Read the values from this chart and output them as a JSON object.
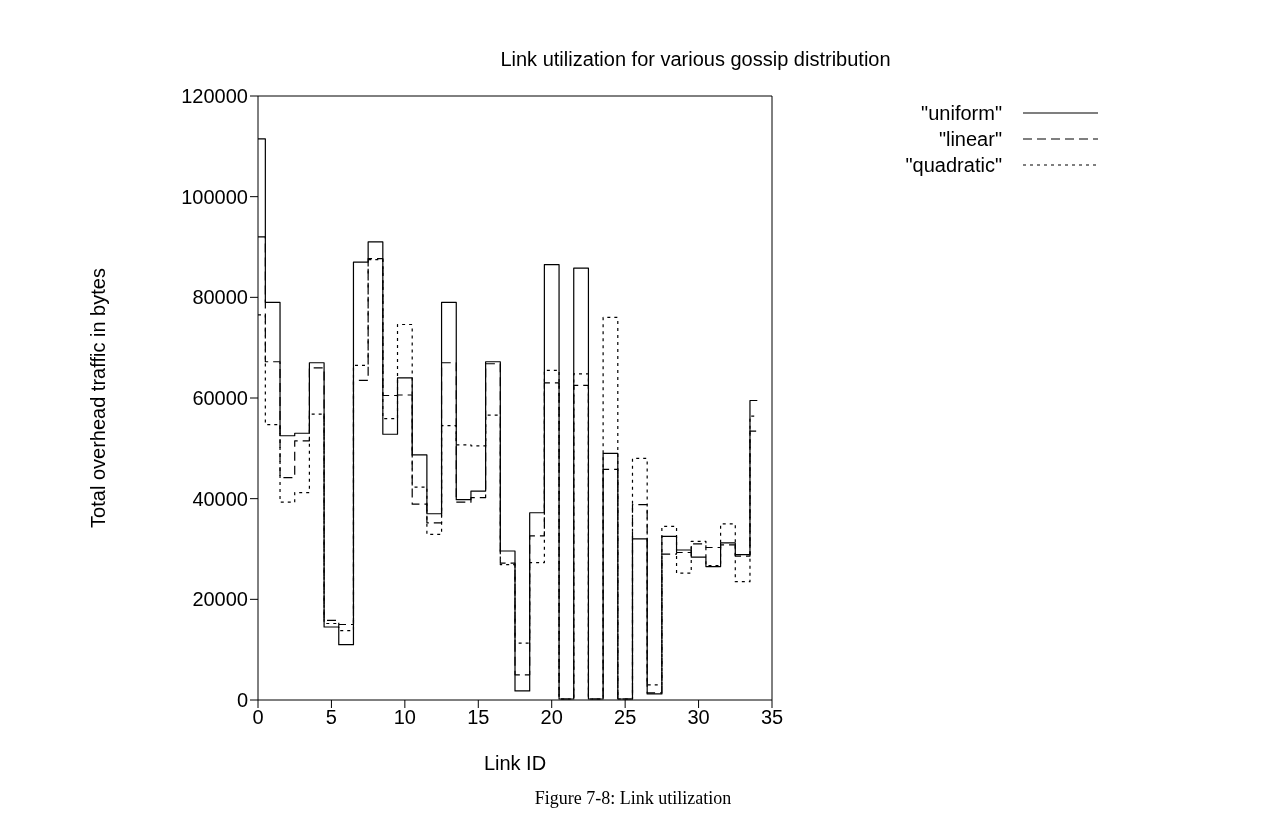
{
  "chart_data": {
    "type": "step",
    "title": "Link utilization for various gossip distribution",
    "xlabel": "Link ID",
    "ylabel": "Total overhead traffic in bytes",
    "annotations": [
      "Figure 7-8: Link utilization"
    ],
    "x": [
      0,
      1,
      2,
      3,
      4,
      5,
      6,
      7,
      8,
      9,
      10,
      11,
      12,
      13,
      14,
      15,
      16,
      17,
      18,
      19,
      20,
      21,
      22,
      23,
      24,
      25,
      26,
      27,
      28,
      29,
      30,
      31,
      32,
      33,
      34
    ],
    "series": [
      {
        "name": "\"uniform\"",
        "color": "#000000",
        "line_style": "solid",
        "values": [
          111500,
          79000,
          52500,
          53000,
          67000,
          14500,
          11000,
          87000,
          91000,
          52800,
          64000,
          48700,
          37000,
          79000,
          39800,
          41500,
          67200,
          29600,
          1800,
          37200,
          86500,
          200,
          85800,
          200,
          49000,
          200,
          32000,
          1200,
          32500,
          29800,
          28400,
          26500,
          31200,
          28900,
          59500
        ]
      },
      {
        "name": "\"linear\"",
        "color": "#000000",
        "line_style": "dashed",
        "values": [
          92000,
          67200,
          44200,
          51500,
          66000,
          15800,
          15000,
          63500,
          87700,
          60500,
          60600,
          38900,
          35200,
          67000,
          39300,
          40200,
          66800,
          27200,
          5000,
          32600,
          63000,
          200,
          62500,
          200,
          45800,
          200,
          38800,
          1400,
          29000,
          29300,
          31000,
          30300,
          30800,
          28600,
          53400
        ]
      },
      {
        "name": "\"quadratic\"",
        "color": "#000000",
        "line_style": "dotted",
        "values": [
          76500,
          54700,
          39300,
          41200,
          56800,
          15200,
          13800,
          66500,
          87500,
          55900,
          74600,
          42300,
          32900,
          54500,
          50700,
          50500,
          56600,
          26900,
          11300,
          27300,
          65500,
          200,
          64800,
          200,
          76000,
          200,
          48000,
          3000,
          34500,
          25200,
          31500,
          26700,
          35000,
          23500,
          56400
        ]
      }
    ],
    "xlim": [
      0,
      35
    ],
    "xticks": [
      0,
      5,
      10,
      15,
      20,
      25,
      30,
      35
    ],
    "ylim": [
      0,
      120000
    ],
    "yticks": [
      0,
      20000,
      40000,
      60000,
      80000,
      100000,
      120000
    ],
    "grid": false,
    "legend": "top right",
    "marker": "none"
  }
}
